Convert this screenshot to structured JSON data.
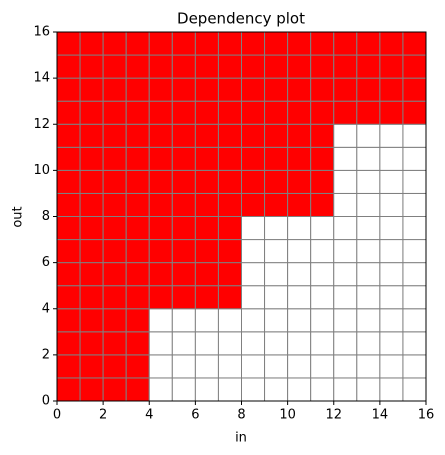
{
  "chart_data": {
    "type": "heatmap",
    "title": "Dependency plot",
    "x_label": "in",
    "y_label": "out",
    "xlim": [
      0,
      16
    ],
    "ylim": [
      0,
      16
    ],
    "xticks": [
      0,
      2,
      4,
      6,
      8,
      10,
      12,
      14,
      16
    ],
    "yticks": [
      0,
      2,
      4,
      6,
      8,
      10,
      12,
      14,
      16
    ],
    "cmap": [
      "#ffffff",
      "#ff0000"
    ],
    "grid": true,
    "grid_color": "#808080",
    "z": [
      [
        1,
        1,
        1,
        1,
        0,
        0,
        0,
        0,
        0,
        0,
        0,
        0,
        0,
        0,
        0,
        0
      ],
      [
        1,
        1,
        1,
        1,
        0,
        0,
        0,
        0,
        0,
        0,
        0,
        0,
        0,
        0,
        0,
        0
      ],
      [
        1,
        1,
        1,
        1,
        0,
        0,
        0,
        0,
        0,
        0,
        0,
        0,
        0,
        0,
        0,
        0
      ],
      [
        1,
        1,
        1,
        1,
        0,
        0,
        0,
        0,
        0,
        0,
        0,
        0,
        0,
        0,
        0,
        0
      ],
      [
        1,
        1,
        1,
        1,
        1,
        1,
        1,
        1,
        0,
        0,
        0,
        0,
        0,
        0,
        0,
        0
      ],
      [
        1,
        1,
        1,
        1,
        1,
        1,
        1,
        1,
        0,
        0,
        0,
        0,
        0,
        0,
        0,
        0
      ],
      [
        1,
        1,
        1,
        1,
        1,
        1,
        1,
        1,
        0,
        0,
        0,
        0,
        0,
        0,
        0,
        0
      ],
      [
        1,
        1,
        1,
        1,
        1,
        1,
        1,
        1,
        0,
        0,
        0,
        0,
        0,
        0,
        0,
        0
      ],
      [
        1,
        1,
        1,
        1,
        1,
        1,
        1,
        1,
        1,
        1,
        1,
        1,
        0,
        0,
        0,
        0
      ],
      [
        1,
        1,
        1,
        1,
        1,
        1,
        1,
        1,
        1,
        1,
        1,
        1,
        0,
        0,
        0,
        0
      ],
      [
        1,
        1,
        1,
        1,
        1,
        1,
        1,
        1,
        1,
        1,
        1,
        1,
        0,
        0,
        0,
        0
      ],
      [
        1,
        1,
        1,
        1,
        1,
        1,
        1,
        1,
        1,
        1,
        1,
        1,
        0,
        0,
        0,
        0
      ],
      [
        1,
        1,
        1,
        1,
        1,
        1,
        1,
        1,
        1,
        1,
        1,
        1,
        1,
        1,
        1,
        1
      ],
      [
        1,
        1,
        1,
        1,
        1,
        1,
        1,
        1,
        1,
        1,
        1,
        1,
        1,
        1,
        1,
        1
      ],
      [
        1,
        1,
        1,
        1,
        1,
        1,
        1,
        1,
        1,
        1,
        1,
        1,
        1,
        1,
        1,
        1
      ],
      [
        1,
        1,
        1,
        1,
        1,
        1,
        1,
        1,
        1,
        1,
        1,
        1,
        1,
        1,
        1,
        1
      ]
    ]
  }
}
